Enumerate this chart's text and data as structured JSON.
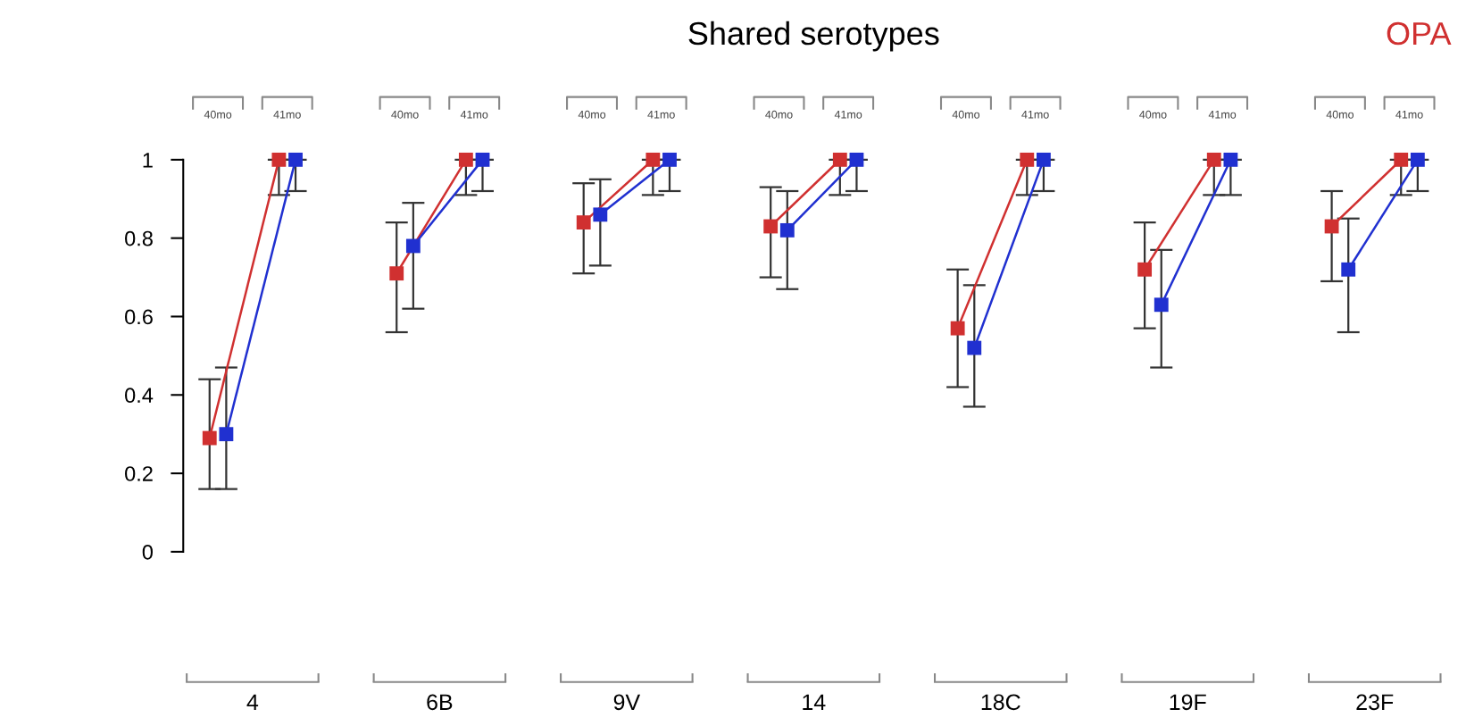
{
  "chart_data": [
    {
      "type": "line",
      "xlabel": "4",
      "categories": [
        "40mo",
        "41mo"
      ],
      "ylim": [
        0,
        1
      ],
      "yticks": [
        0,
        0.2,
        0.4,
        0.6,
        0.8,
        1
      ],
      "marker": "square",
      "series": [
        {
          "color": "#d03030",
          "values": [
            0.29,
            1
          ],
          "errors": [
            [
              0.16,
              0.44
            ],
            [
              0.91,
              1
            ]
          ]
        },
        {
          "color": "#2030d0",
          "values": [
            0.3,
            1
          ],
          "errors": [
            [
              0.16,
              0.47
            ],
            [
              0.92,
              1
            ]
          ]
        }
      ]
    },
    {
      "type": "line",
      "xlabel": "6B",
      "categories": [
        "40mo",
        "41mo"
      ],
      "ylim": [
        0,
        1
      ],
      "tick_labels": "x",
      "marker": "square",
      "series": [
        {
          "color": "#d03030",
          "values": [
            0.71,
            1
          ],
          "errors": [
            [
              0.56,
              0.84
            ],
            [
              0.91,
              1
            ]
          ]
        },
        {
          "color": "#2030d0",
          "values": [
            0.78,
            1
          ],
          "errors": [
            [
              0.62,
              0.89
            ],
            [
              0.92,
              1
            ]
          ]
        }
      ]
    },
    {
      "type": "line",
      "xlabel": "9V",
      "categories": [
        "40mo",
        "41mo"
      ],
      "ylim": [
        0,
        1
      ],
      "tick_labels": "x",
      "marker": "square",
      "series": [
        {
          "color": "#d03030",
          "values": [
            0.84,
            1
          ],
          "errors": [
            [
              0.71,
              0.94
            ],
            [
              0.91,
              1
            ]
          ]
        },
        {
          "color": "#2030d0",
          "values": [
            0.86,
            1
          ],
          "errors": [
            [
              0.73,
              0.95
            ],
            [
              0.92,
              1
            ]
          ]
        }
      ]
    },
    {
      "type": "line",
      "xlabel": "14",
      "categories": [
        "40mo",
        "41mo"
      ],
      "ylim": [
        0,
        1
      ],
      "tick_labels": "x",
      "marker": "square",
      "series": [
        {
          "color": "#d03030",
          "values": [
            0.83,
            1
          ],
          "errors": [
            [
              0.7,
              0.93
            ],
            [
              0.91,
              1
            ]
          ]
        },
        {
          "color": "#2030d0",
          "values": [
            0.82,
            1
          ],
          "errors": [
            [
              0.67,
              0.92
            ],
            [
              0.92,
              1
            ]
          ]
        }
      ]
    },
    {
      "type": "line",
      "xlabel": "18C",
      "categories": [
        "40mo",
        "41mo"
      ],
      "ylim": [
        0,
        1
      ],
      "tick_labels": "x",
      "marker": "square",
      "series": [
        {
          "color": "#d03030",
          "values": [
            0.57,
            1
          ],
          "errors": [
            [
              0.42,
              0.72
            ],
            [
              0.91,
              1
            ]
          ]
        },
        {
          "color": "#2030d0",
          "values": [
            0.52,
            1
          ],
          "errors": [
            [
              0.37,
              0.68
            ],
            [
              0.92,
              1
            ]
          ]
        }
      ]
    },
    {
      "type": "line",
      "xlabel": "19F",
      "categories": [
        "40mo",
        "41mo"
      ],
      "ylim": [
        0,
        1
      ],
      "tick_labels": "x",
      "marker": "square",
      "series": [
        {
          "color": "#d03030",
          "values": [
            0.72,
            1
          ],
          "errors": [
            [
              0.57,
              0.84
            ],
            [
              0.91,
              1
            ]
          ]
        },
        {
          "color": "#2030d0",
          "values": [
            0.63,
            1
          ],
          "errors": [
            [
              0.47,
              0.77
            ],
            [
              0.91,
              1
            ]
          ]
        }
      ]
    },
    {
      "type": "line",
      "xlabel": "23F",
      "categories": [
        "40mo",
        "41mo"
      ],
      "ylim": [
        0,
        1
      ],
      "tick_labels": "x",
      "marker": "square",
      "series": [
        {
          "color": "#d03030",
          "values": [
            0.83,
            1
          ],
          "errors": [
            [
              0.69,
              0.92
            ],
            [
              0.91,
              1
            ]
          ]
        },
        {
          "color": "#2030d0",
          "values": [
            0.72,
            1
          ],
          "errors": [
            [
              0.56,
              0.85
            ],
            [
              0.92,
              1
            ]
          ]
        }
      ]
    },
    {
      "type": "other",
      "title": "Shared serotypes",
      "annotations": [
        "OPA"
      ]
    }
  ]
}
